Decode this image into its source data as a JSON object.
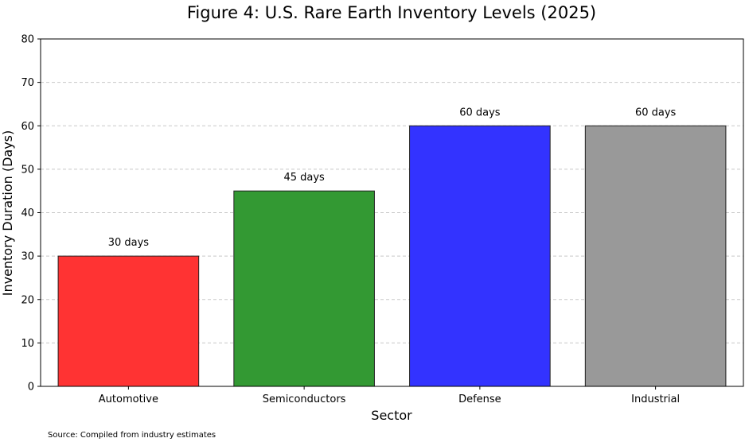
{
  "chart_data": {
    "type": "bar",
    "title": "Figure 4: U.S. Rare Earth Inventory Levels (2025)",
    "xlabel": "Sector",
    "ylabel": "Inventory Duration (Days)",
    "categories": [
      "Automotive",
      "Semiconductors",
      "Defense",
      "Industrial"
    ],
    "values": [
      30,
      45,
      60,
      60
    ],
    "data_labels": [
      "30 days",
      "45 days",
      "60 days",
      "60 days"
    ],
    "colors": [
      "#ff3333",
      "#339933",
      "#3333ff",
      "#999999"
    ],
    "edge_color": "#222222",
    "ylim": [
      0,
      80
    ],
    "yticks": [
      0,
      10,
      20,
      30,
      40,
      50,
      60,
      70,
      80
    ],
    "grid": "y-dashed",
    "legend": "none"
  },
  "source_note": "Source: Compiled from industry estimates"
}
